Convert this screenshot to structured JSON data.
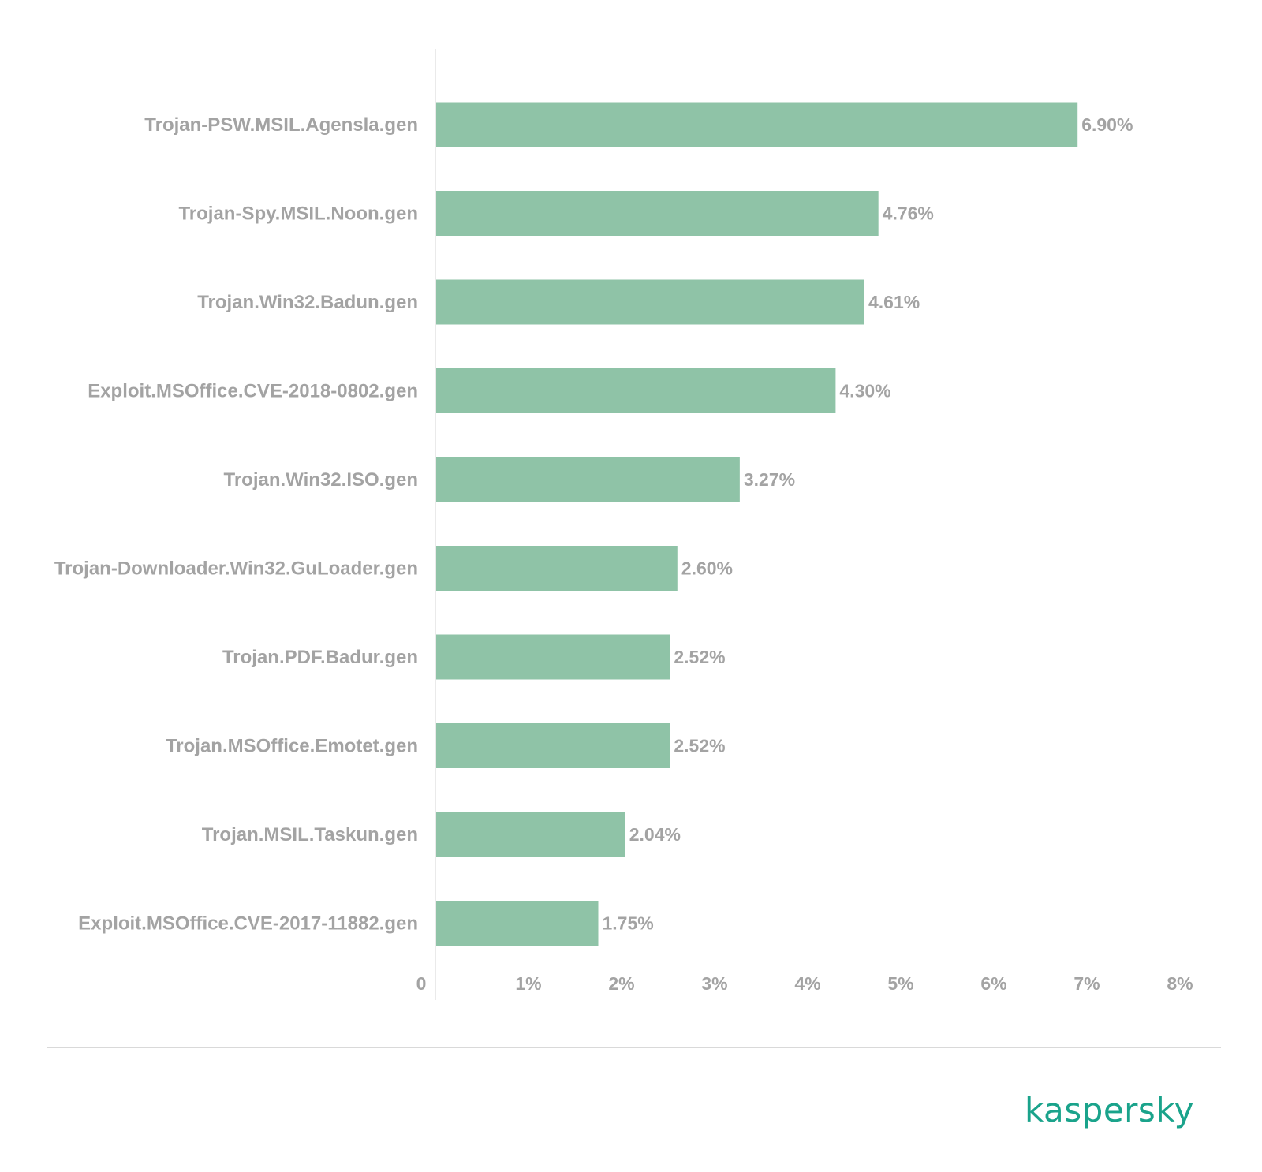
{
  "chart_data": {
    "type": "bar",
    "orientation": "horizontal",
    "categories": [
      "Trojan-PSW.MSIL.Agensla.gen",
      "Trojan-Spy.MSIL.Noon.gen",
      "Trojan.Win32.Badun.gen",
      "Exploit.MSOffice.CVE-2018-0802.gen",
      "Trojan.Win32.ISO.gen",
      "Trojan-Downloader.Win32.GuLoader.gen",
      "Trojan.PDF.Badur.gen",
      "Trojan.MSOffice.Emotet.gen",
      "Trojan.MSIL.Taskun.gen",
      "Exploit.MSOffice.CVE-2017-11882.gen"
    ],
    "values": [
      6.9,
      4.76,
      4.61,
      4.3,
      3.27,
      2.6,
      2.52,
      2.52,
      2.04,
      1.75
    ],
    "value_labels": [
      "6.90%",
      "4.76%",
      "4.61%",
      "4.30%",
      "3.27%",
      "2.60%",
      "2.52%",
      "2.52%",
      "2.04%",
      "1.75%"
    ],
    "xlim": [
      0,
      8
    ],
    "x_ticks": [
      "0",
      "1%",
      "2%",
      "3%",
      "4%",
      "5%",
      "6%",
      "7%",
      "8%"
    ],
    "bar_color": "#8fc3a7",
    "title": "",
    "xlabel": "",
    "ylabel": "",
    "grid": false
  },
  "brand": {
    "logo_text": "kaspersky",
    "color": "#1aa38b"
  }
}
